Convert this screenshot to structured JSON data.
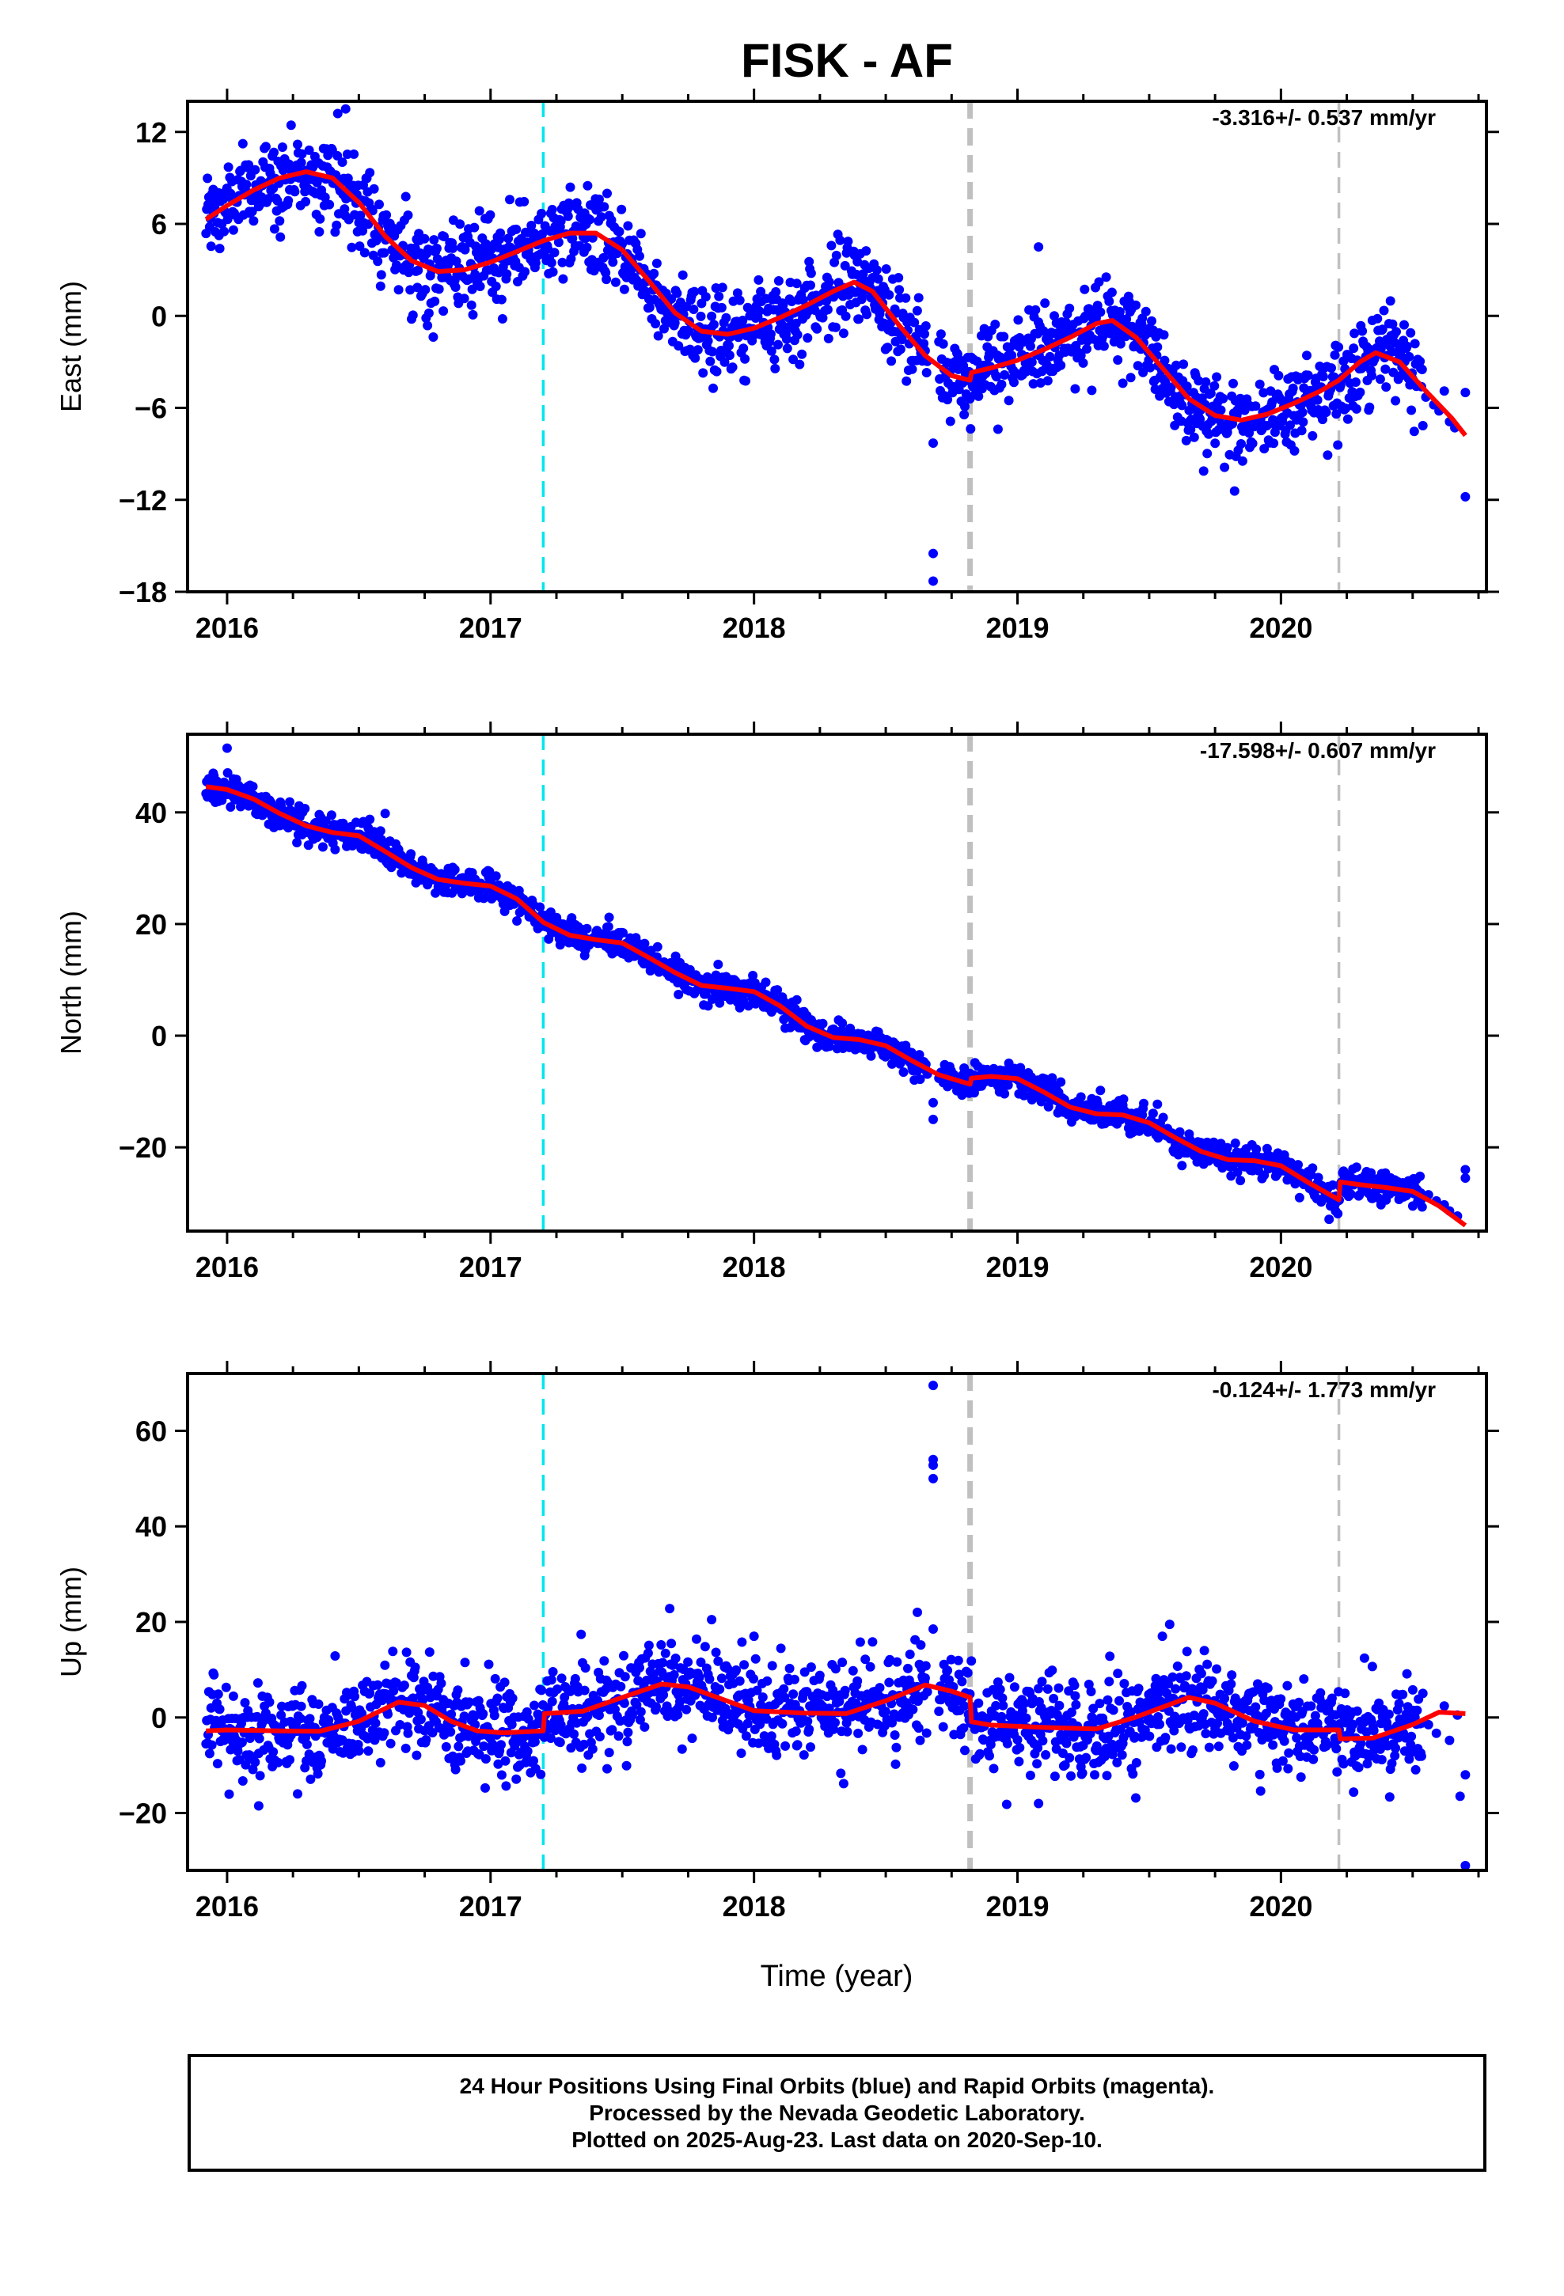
{
  "title": "FISK - AF",
  "x_axis_label": "Time (year)",
  "caption": {
    "line1": "24 Hour Positions Using Final Orbits (blue) and Rapid Orbits (magenta).",
    "line2": "Processed by the Nevada Geodetic Laboratory.",
    "line3": "Plotted on 2025-Aug-23. Last data on 2020-Sep-10."
  },
  "colors": {
    "points": "#0000ff",
    "fit": "#ff0000",
    "antenna_change": "#00e5ee",
    "equipment_change": "#c0c0c0"
  },
  "chart_data": [
    {
      "type": "scatter",
      "component": "east",
      "ylabel": "East (mm)",
      "rate_label": "-3.316+/- 0.537 mm/yr",
      "xlim": [
        2015.85,
        2020.78
      ],
      "ylim": [
        -18,
        14
      ],
      "x_ticks": [
        2016,
        2017,
        2018,
        2019,
        2020
      ],
      "y_ticks": [
        -18,
        -12,
        -6,
        0,
        6,
        12
      ],
      "noise_sd": 1.4,
      "fit": [
        [
          2015.92,
          6.3
        ],
        [
          2016.0,
          7.2
        ],
        [
          2016.1,
          8.2
        ],
        [
          2016.2,
          9.0
        ],
        [
          2016.3,
          9.4
        ],
        [
          2016.4,
          9.0
        ],
        [
          2016.5,
          7.4
        ],
        [
          2016.6,
          5.2
        ],
        [
          2016.7,
          3.6
        ],
        [
          2016.8,
          2.9
        ],
        [
          2016.9,
          3.0
        ],
        [
          2017.0,
          3.5
        ],
        [
          2017.1,
          4.2
        ],
        [
          2017.2,
          4.9
        ],
        [
          2017.3,
          5.4
        ],
        [
          2017.4,
          5.4
        ],
        [
          2017.5,
          4.3
        ],
        [
          2017.6,
          2.3
        ],
        [
          2017.7,
          0.2
        ],
        [
          2017.8,
          -1.0
        ],
        [
          2017.9,
          -1.2
        ],
        [
          2018.0,
          -0.8
        ],
        [
          2018.1,
          -0.1
        ],
        [
          2018.2,
          0.7
        ],
        [
          2018.3,
          1.6
        ],
        [
          2018.38,
          2.2
        ],
        [
          2018.45,
          1.6
        ],
        [
          2018.55,
          -0.6
        ],
        [
          2018.65,
          -2.6
        ],
        [
          2018.75,
          -3.9
        ],
        [
          2018.82,
          -4.2
        ],
        [
          2018.825,
          -3.7
        ],
        [
          2018.9,
          -3.4
        ],
        [
          2019.0,
          -2.9
        ],
        [
          2019.1,
          -2.2
        ],
        [
          2019.2,
          -1.4
        ],
        [
          2019.3,
          -0.5
        ],
        [
          2019.36,
          -0.3
        ],
        [
          2019.45,
          -1.4
        ],
        [
          2019.55,
          -3.4
        ],
        [
          2019.65,
          -5.4
        ],
        [
          2019.75,
          -6.5
        ],
        [
          2019.85,
          -6.8
        ],
        [
          2019.95,
          -6.4
        ],
        [
          2020.05,
          -5.7
        ],
        [
          2020.15,
          -4.9
        ],
        [
          2020.22,
          -4.2
        ],
        [
          2020.3,
          -3.0
        ],
        [
          2020.36,
          -2.4
        ],
        [
          2020.45,
          -3.0
        ],
        [
          2020.55,
          -4.9
        ],
        [
          2020.65,
          -6.7
        ],
        [
          2020.7,
          -7.8
        ]
      ],
      "outliers": [
        [
          2018.68,
          -15.5
        ],
        [
          2018.68,
          -17.3
        ],
        [
          2018.68,
          -8.3
        ],
        [
          2020.7,
          -11.8
        ],
        [
          2016.42,
          13.2
        ],
        [
          2016.45,
          13.5
        ],
        [
          2019.08,
          4.5
        ]
      ],
      "rapid_tail": [
        [
          2020.55,
          -5.3
        ],
        [
          2020.58,
          -5.8
        ],
        [
          2020.6,
          -6.2
        ],
        [
          2020.62,
          -4.9
        ],
        [
          2020.64,
          -6.9
        ],
        [
          2020.66,
          -7.3
        ],
        [
          2020.7,
          -5.0
        ]
      ],
      "vlines": [
        {
          "x": 2017.2,
          "style": "antenna_change"
        },
        {
          "x": 2018.82,
          "style": "equipment_change",
          "thick": true
        },
        {
          "x": 2020.22,
          "style": "equipment_change",
          "thick": false
        }
      ]
    },
    {
      "type": "scatter",
      "component": "north",
      "ylabel": "North (mm)",
      "rate_label": "-17.598+/- 0.607 mm/yr",
      "xlim": [
        2015.85,
        2020.78
      ],
      "ylim": [
        -35,
        54
      ],
      "x_ticks": [
        2016,
        2017,
        2018,
        2019,
        2020
      ],
      "y_ticks": [
        -20,
        0,
        20,
        40
      ],
      "noise_sd": 1.3,
      "fit": [
        [
          2015.92,
          44.6
        ],
        [
          2016.0,
          44.1
        ],
        [
          2016.1,
          42.4
        ],
        [
          2016.2,
          39.8
        ],
        [
          2016.3,
          37.6
        ],
        [
          2016.4,
          36.4
        ],
        [
          2016.5,
          35.8
        ],
        [
          2016.6,
          33.0
        ],
        [
          2016.7,
          30.1
        ],
        [
          2016.8,
          28.0
        ],
        [
          2016.9,
          27.3
        ],
        [
          2017.0,
          26.8
        ],
        [
          2017.1,
          24.5
        ],
        [
          2017.2,
          20.3
        ],
        [
          2017.3,
          18.0
        ],
        [
          2017.4,
          17.2
        ],
        [
          2017.5,
          16.6
        ],
        [
          2017.6,
          14.0
        ],
        [
          2017.7,
          11.3
        ],
        [
          2017.8,
          9.0
        ],
        [
          2017.9,
          8.5
        ],
        [
          2018.0,
          7.9
        ],
        [
          2018.1,
          5.3
        ],
        [
          2018.2,
          1.7
        ],
        [
          2018.3,
          -0.3
        ],
        [
          2018.4,
          -0.7
        ],
        [
          2018.5,
          -1.8
        ],
        [
          2018.6,
          -4.5
        ],
        [
          2018.7,
          -7.0
        ],
        [
          2018.82,
          -8.7
        ],
        [
          2018.825,
          -7.6
        ],
        [
          2018.9,
          -7.3
        ],
        [
          2019.0,
          -7.7
        ],
        [
          2019.1,
          -10.1
        ],
        [
          2019.2,
          -12.8
        ],
        [
          2019.3,
          -14.0
        ],
        [
          2019.4,
          -14.2
        ],
        [
          2019.5,
          -15.6
        ],
        [
          2019.6,
          -18.3
        ],
        [
          2019.7,
          -20.8
        ],
        [
          2019.8,
          -22.2
        ],
        [
          2019.9,
          -22.4
        ],
        [
          2020.0,
          -23.3
        ],
        [
          2020.1,
          -26.2
        ],
        [
          2020.22,
          -29.4
        ],
        [
          2020.225,
          -26.2
        ],
        [
          2020.3,
          -26.7
        ],
        [
          2020.4,
          -27.2
        ],
        [
          2020.5,
          -27.9
        ],
        [
          2020.6,
          -30.5
        ],
        [
          2020.7,
          -34.0
        ]
      ],
      "outliers": [
        [
          2018.68,
          -12.0
        ],
        [
          2018.68,
          -15.0
        ],
        [
          2020.7,
          -24.0
        ],
        [
          2020.7,
          -25.5
        ],
        [
          2016.0,
          51.5
        ],
        [
          2017.45,
          21.2
        ],
        [
          2016.6,
          39.8
        ]
      ],
      "rapid_tail": [
        [
          2020.56,
          -28.5
        ],
        [
          2020.59,
          -29.6
        ],
        [
          2020.62,
          -30.3
        ],
        [
          2020.64,
          -31.4
        ],
        [
          2020.67,
          -32.3
        ]
      ],
      "vlines": [
        {
          "x": 2017.2,
          "style": "antenna_change"
        },
        {
          "x": 2018.82,
          "style": "equipment_change",
          "thick": true
        },
        {
          "x": 2020.22,
          "style": "equipment_change",
          "thick": false
        }
      ]
    },
    {
      "type": "scatter",
      "component": "up",
      "ylabel": "Up (mm)",
      "rate_label": "-0.124+/- 1.773 mm/yr",
      "xlim": [
        2015.85,
        2020.78
      ],
      "ylim": [
        -32,
        72
      ],
      "x_ticks": [
        2016,
        2017,
        2018,
        2019,
        2020
      ],
      "y_ticks": [
        -20,
        0,
        20,
        40,
        60
      ],
      "noise_sd": 5.0,
      "fit": [
        [
          2015.92,
          -2.8
        ],
        [
          2016.0,
          -2.6
        ],
        [
          2016.2,
          -2.8
        ],
        [
          2016.35,
          -2.9
        ],
        [
          2016.5,
          -0.8
        ],
        [
          2016.65,
          3.2
        ],
        [
          2016.75,
          2.5
        ],
        [
          2016.85,
          -0.8
        ],
        [
          2016.95,
          -2.8
        ],
        [
          2017.05,
          -3.2
        ],
        [
          2017.2,
          -2.8
        ],
        [
          2017.205,
          0.8
        ],
        [
          2017.35,
          1.3
        ],
        [
          2017.5,
          4.2
        ],
        [
          2017.65,
          7.0
        ],
        [
          2017.75,
          6.4
        ],
        [
          2017.9,
          3.4
        ],
        [
          2018.0,
          1.4
        ],
        [
          2018.2,
          0.9
        ],
        [
          2018.35,
          0.8
        ],
        [
          2018.5,
          3.5
        ],
        [
          2018.65,
          6.8
        ],
        [
          2018.75,
          5.5
        ],
        [
          2018.82,
          4.2
        ],
        [
          2018.825,
          -0.9
        ],
        [
          2018.9,
          -1.6
        ],
        [
          2019.1,
          -2.1
        ],
        [
          2019.3,
          -2.4
        ],
        [
          2019.45,
          0.1
        ],
        [
          2019.65,
          4.2
        ],
        [
          2019.75,
          3.0
        ],
        [
          2019.9,
          -0.8
        ],
        [
          2020.05,
          -2.6
        ],
        [
          2020.22,
          -2.6
        ],
        [
          2020.225,
          -4.5
        ],
        [
          2020.35,
          -4.3
        ],
        [
          2020.5,
          -1.5
        ],
        [
          2020.6,
          1.1
        ],
        [
          2020.7,
          0.8
        ]
      ],
      "outliers": [
        [
          2018.68,
          69.5
        ],
        [
          2018.68,
          54.0
        ],
        [
          2018.68,
          52.8
        ],
        [
          2018.68,
          50.0
        ],
        [
          2018.68,
          18.5
        ],
        [
          2018.62,
          22.0
        ],
        [
          2020.7,
          -31.0
        ],
        [
          2020.7,
          -12.0
        ],
        [
          2020.68,
          -16.5
        ],
        [
          2017.68,
          22.8
        ],
        [
          2016.12,
          -18.5
        ],
        [
          2019.08,
          -18.0
        ],
        [
          2019.55,
          17.0
        ],
        [
          2018.0,
          17.0
        ]
      ],
      "rapid_tail": [
        [
          2020.56,
          -1.5
        ],
        [
          2020.59,
          -3.3
        ],
        [
          2020.62,
          2.4
        ],
        [
          2020.64,
          -4.8
        ],
        [
          2020.67,
          0.5
        ]
      ],
      "vlines": [
        {
          "x": 2017.2,
          "style": "antenna_change"
        },
        {
          "x": 2018.82,
          "style": "equipment_change",
          "thick": true
        },
        {
          "x": 2020.22,
          "style": "equipment_change",
          "thick": false
        }
      ]
    }
  ]
}
